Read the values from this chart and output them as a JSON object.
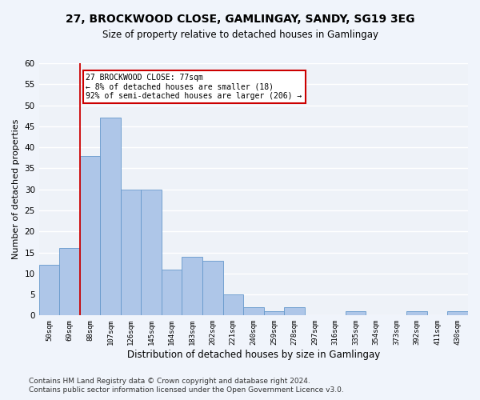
{
  "title1": "27, BROCKWOOD CLOSE, GAMLINGAY, SANDY, SG19 3EG",
  "title2": "Size of property relative to detached houses in Gamlingay",
  "xlabel": "Distribution of detached houses by size in Gamlingay",
  "ylabel": "Number of detached properties",
  "bar_labels": [
    "50sqm",
    "69sqm",
    "88sqm",
    "107sqm",
    "126sqm",
    "145sqm",
    "164sqm",
    "183sqm",
    "202sqm",
    "221sqm",
    "240sqm",
    "259sqm",
    "278sqm",
    "297sqm",
    "316sqm",
    "335sqm",
    "354sqm",
    "373sqm",
    "392sqm",
    "411sqm",
    "430sqm"
  ],
  "bar_values": [
    12,
    16,
    38,
    47,
    30,
    30,
    11,
    14,
    13,
    5,
    2,
    1,
    2,
    0,
    0,
    1,
    0,
    0,
    1,
    0,
    1
  ],
  "bar_color": "#aec6e8",
  "bar_edge_color": "#6699cc",
  "vline_x": 1.5,
  "annotation_text": "27 BROCKWOOD CLOSE: 77sqm\n← 8% of detached houses are smaller (18)\n92% of semi-detached houses are larger (206) →",
  "annotation_box_color": "#ffffff",
  "annotation_box_edge_color": "#cc0000",
  "ylim": [
    0,
    60
  ],
  "yticks": [
    0,
    5,
    10,
    15,
    20,
    25,
    30,
    35,
    40,
    45,
    50,
    55,
    60
  ],
  "background_color": "#eef2f8",
  "footer1": "Contains HM Land Registry data © Crown copyright and database right 2024.",
  "footer2": "Contains public sector information licensed under the Open Government Licence v3.0.",
  "vline_color": "#cc0000",
  "grid_color": "#ffffff"
}
